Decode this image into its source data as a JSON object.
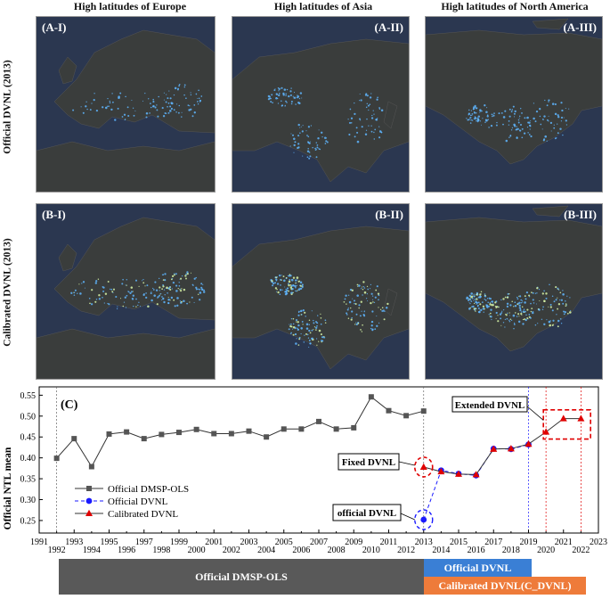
{
  "columns": [
    "High latitudes of Europe",
    "High latitudes of Asia",
    "High latitudes of North America"
  ],
  "rows": [
    "Official DVNL  (2013)",
    "Calibrated DVNL (2013)"
  ],
  "panels": {
    "a1": "(A-I)",
    "a2": "(A-II)",
    "a3": "(A-III)",
    "b1": "(B-I)",
    "b2": "(B-II)",
    "b3": "(B-III)"
  },
  "map_colors": {
    "ocean": "#2b3750",
    "land": "#3a3d3c",
    "lights": "#5fb6ff",
    "bright": "#d9f7a8"
  },
  "chart_data": {
    "type": "line",
    "panel_label": "(C)",
    "ylabel": "Official NTL mean",
    "xlim": [
      1991,
      2023
    ],
    "ylim": [
      0.22,
      0.57
    ],
    "xticks": [
      1991,
      1993,
      1995,
      1997,
      1999,
      2001,
      2003,
      2005,
      2007,
      2009,
      2011,
      2013,
      2015,
      2017,
      2019,
      2021,
      2023
    ],
    "xticks_minor": [
      1992,
      1994,
      1996,
      1998,
      2000,
      2002,
      2004,
      2006,
      2008,
      2010,
      2012,
      2014,
      2016,
      2018,
      2020,
      2022
    ],
    "yticks": [
      0.25,
      0.3,
      0.35,
      0.4,
      0.45,
      0.5,
      0.55
    ],
    "series": [
      {
        "name": "Official DMSP-OLS",
        "color": "#555555",
        "marker": "square",
        "line": "solid",
        "x": [
          1992,
          1993,
          1994,
          1995,
          1996,
          1997,
          1998,
          1999,
          2000,
          2001,
          2002,
          2003,
          2004,
          2005,
          2006,
          2007,
          2008,
          2009,
          2010,
          2011,
          2012,
          2013
        ],
        "y": [
          0.399,
          0.446,
          0.379,
          0.457,
          0.462,
          0.446,
          0.456,
          0.461,
          0.468,
          0.458,
          0.458,
          0.464,
          0.45,
          0.469,
          0.469,
          0.487,
          0.469,
          0.472,
          0.546,
          0.513,
          0.501,
          0.512
        ]
      },
      {
        "name": "Official DVNL",
        "color": "#1a1aff",
        "marker": "circle",
        "line": "dashed",
        "x": [
          2013,
          2014,
          2015,
          2016,
          2017,
          2018,
          2019
        ],
        "y": [
          0.252,
          0.37,
          0.362,
          0.358,
          0.422,
          0.421,
          0.432
        ]
      },
      {
        "name": "Calibrated DVNL",
        "color": "#e00000",
        "marker": "triangle",
        "line": "solid",
        "x": [
          2013,
          2014,
          2015,
          2016,
          2017,
          2018,
          2019,
          2020,
          2021,
          2022
        ],
        "y": [
          0.378,
          0.367,
          0.361,
          0.36,
          0.421,
          0.422,
          0.433,
          0.462,
          0.494,
          0.494
        ]
      }
    ],
    "vlines": [
      1992,
      2013,
      2019,
      2020,
      2022
    ],
    "annotations": [
      {
        "text": "Extended DVNL",
        "target": "2020-2022"
      },
      {
        "text": "Fixed DVNL",
        "target": "2013 calibrated"
      },
      {
        "text": "official DVNL",
        "target": "2013 official"
      }
    ],
    "legend": "lower-left"
  },
  "bars": {
    "dmsp": "Official DMSP-OLS",
    "dvnl": "Official DVNL",
    "cdvnl": "Calibrated DVNL(C_DVNL)"
  },
  "bar_colors": {
    "dmsp": "#595959",
    "dvnl": "#3a7fd5",
    "cdvnl": "#ee7b3a"
  }
}
